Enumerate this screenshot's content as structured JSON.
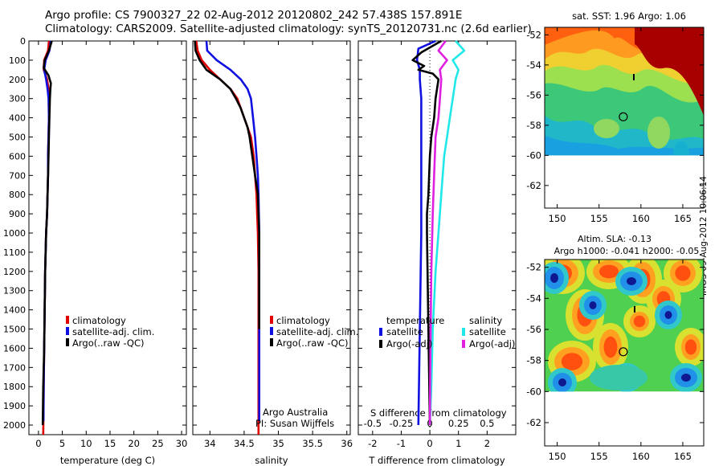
{
  "header": {
    "title_line1": "Argo profile: CS 7900327_22 02-Aug-2012 20120802_242 57.438S 157.891E",
    "title_line2": "Climatology: CARS2009. Satellite-adjusted climatology: synTS_20120731.nc (2.6d earlier)"
  },
  "footer": {
    "side_label": "IMOS 09-Aug-2012 10:06:14"
  },
  "colors": {
    "red": "#e00000",
    "blue": "#1010e0",
    "black": "#000000",
    "cyan": "#20e8e8",
    "magenta": "#e020e0"
  },
  "chart_data": [
    {
      "id": "temperature",
      "type": "line",
      "xlabel": "temperature (deg C)",
      "ylabel": "",
      "xlim": [
        -2,
        31
      ],
      "ylim": [
        2050,
        0
      ],
      "xticks": [
        "0",
        "5",
        "10",
        "15",
        "20",
        "25",
        "30"
      ],
      "xtick_values": [
        0,
        5,
        10,
        15,
        20,
        25,
        30
      ],
      "yticks": [
        "0",
        "100",
        "200",
        "300",
        "400",
        "500",
        "600",
        "700",
        "800",
        "900",
        "1000",
        "1100",
        "1200",
        "1300",
        "1400",
        "1500",
        "1600",
        "1700",
        "1800",
        "1900",
        "2000"
      ],
      "ytick_values": [
        0,
        100,
        200,
        300,
        400,
        500,
        600,
        700,
        800,
        900,
        1000,
        1100,
        1200,
        1300,
        1400,
        1500,
        1600,
        1700,
        1800,
        1900,
        2000
      ],
      "legend": [
        "climatology",
        "satellite-adj. clim.",
        "Argo(..raw -QC)"
      ],
      "legend_colors": [
        "#e00000",
        "#1010e0",
        "#000000"
      ],
      "series": [
        {
          "name": "climatology",
          "color": "#e00000",
          "x": [
            2.2,
            2.0,
            1.2,
            1.1,
            1.8,
            2.1,
            2.2,
            2.2,
            2.1,
            2.0,
            2.0,
            1.9,
            1.8,
            1.6,
            1.4,
            1.3,
            1.2,
            1.1,
            1.05,
            1.0
          ],
          "y": [
            0,
            50,
            100,
            150,
            200,
            250,
            300,
            400,
            500,
            600,
            700,
            800,
            900,
            1000,
            1200,
            1400,
            1600,
            1800,
            1950,
            2050
          ]
        },
        {
          "name": "satellite-adj. clim.",
          "color": "#1010e0",
          "x": [
            2.6,
            2.3,
            1.5,
            1.2,
            1.6,
            1.9,
            2.1,
            2.2,
            2.1,
            2.0,
            2.0,
            1.9,
            1.8,
            1.6,
            1.4,
            1.3,
            1.2,
            1.1,
            1.05
          ],
          "y": [
            0,
            50,
            100,
            150,
            200,
            250,
            300,
            400,
            500,
            600,
            700,
            800,
            900,
            1000,
            1200,
            1400,
            1600,
            1800,
            1980
          ]
        },
        {
          "name": "Argo(..raw -QC)",
          "color": "#000000",
          "x": [
            2.8,
            2.2,
            1.3,
            1.1,
            2.1,
            2.6,
            2.5,
            2.4,
            2.3,
            2.2,
            2.1,
            2.0,
            1.9,
            1.8,
            1.6,
            1.4,
            1.3,
            1.2,
            1.0,
            0.9
          ],
          "y": [
            0,
            50,
            100,
            140,
            180,
            220,
            250,
            300,
            400,
            500,
            600,
            700,
            800,
            900,
            1000,
            1200,
            1400,
            1600,
            1800,
            2000
          ]
        }
      ]
    },
    {
      "id": "salinity",
      "type": "line",
      "xlabel": "salinity",
      "xlim": [
        33.75,
        36.05
      ],
      "ylim": [
        2050,
        0
      ],
      "xticks": [
        "34",
        "34.5",
        "35",
        "35.5",
        "36"
      ],
      "xtick_values": [
        34,
        34.5,
        35,
        35.5,
        36
      ],
      "legend": [
        "climatology",
        "satellite-adj. clim.",
        "Argo(..raw -QC)"
      ],
      "legend_colors": [
        "#e00000",
        "#1010e0",
        "#000000"
      ],
      "annotation_line1": "Argo Australia",
      "annotation_line2": "PI: Susan Wijffels",
      "series": [
        {
          "name": "climatology",
          "color": "#e00000",
          "x": [
            33.8,
            33.82,
            33.88,
            34.0,
            34.15,
            34.3,
            34.4,
            34.45,
            34.5,
            34.55,
            34.6,
            34.64,
            34.66,
            34.68,
            34.69,
            34.7,
            34.71,
            34.71,
            34.71
          ],
          "y": [
            0,
            50,
            100,
            150,
            200,
            250,
            300,
            350,
            400,
            450,
            500,
            600,
            700,
            800,
            900,
            1000,
            1200,
            1500,
            2050
          ]
        },
        {
          "name": "satellite-adj. clim.",
          "color": "#1010e0",
          "x": [
            33.95,
            33.96,
            34.1,
            34.3,
            34.45,
            34.55,
            34.6,
            34.63,
            34.66,
            34.68,
            34.7,
            34.71,
            34.72,
            34.72,
            34.72,
            34.72
          ],
          "y": [
            0,
            50,
            100,
            150,
            200,
            250,
            300,
            400,
            500,
            600,
            700,
            800,
            1000,
            1200,
            1500,
            1980
          ]
        },
        {
          "name": "Argo(..raw -QC)",
          "color": "#000000",
          "x": [
            33.78,
            33.79,
            33.85,
            33.95,
            34.15,
            34.3,
            34.38,
            34.45,
            34.5,
            34.55,
            34.58,
            34.62,
            34.66,
            34.7,
            34.71,
            34.72,
            34.72,
            34.72
          ],
          "y": [
            0,
            50,
            100,
            150,
            200,
            250,
            300,
            350,
            400,
            450,
            500,
            600,
            700,
            800,
            900,
            1000,
            1200,
            1500
          ]
        }
      ]
    },
    {
      "id": "differences",
      "type": "line",
      "xlabel": "T difference from climatology",
      "top_label": "S difference from climatology",
      "xlim": [
        -2.5,
        3.0
      ],
      "ylim": [
        2050,
        0
      ],
      "xticks": [
        "-2",
        "-1",
        "0",
        "1",
        "2"
      ],
      "xtick_values": [
        -2,
        -1,
        0,
        1,
        2
      ],
      "top_ticks": [
        "-0.5",
        "-0.25",
        "0",
        "0.25",
        "0.5"
      ],
      "top_tick_values": [
        -0.5,
        -0.25,
        0,
        0.25,
        0.5
      ],
      "legend_title_left": "temperature",
      "legend_title_right": "salinity",
      "legend": [
        "satellite",
        "Argo(-adj)",
        "satellite",
        "Argo(-adj)"
      ],
      "legend_colors": [
        "#1010e0",
        "#000000",
        "#20e8e8",
        "#e020e0"
      ],
      "series": [
        {
          "name": "satellite",
          "color": "#1010e0",
          "x": [
            0.2,
            -0.4,
            -0.45,
            -0.35,
            -0.35,
            -0.3,
            -0.3,
            -0.3,
            -0.35,
            -0.4
          ],
          "y": [
            0,
            40,
            100,
            150,
            200,
            300,
            500,
            1000,
            1500,
            2000
          ]
        },
        {
          "name": "Argo(-adj)",
          "color": "#000000",
          "x": [
            0.4,
            -0.3,
            -0.6,
            -0.2,
            -0.4,
            0.1,
            0.3,
            0.25,
            0.2,
            0.15,
            0.05,
            0.0,
            -0.05,
            -0.1,
            -0.1,
            -0.05,
            0.0
          ],
          "y": [
            0,
            60,
            100,
            130,
            150,
            170,
            200,
            250,
            300,
            400,
            500,
            600,
            800,
            900,
            1000,
            1500,
            2000
          ]
        },
        {
          "name": "satellite",
          "color": "#20e8e8",
          "x": [
            0.9,
            1.2,
            0.8,
            1.0,
            0.9,
            0.8,
            0.7,
            0.6,
            0.5,
            0.4,
            0.3,
            0.2,
            0.1,
            0.05,
            0.0
          ],
          "y": [
            0,
            50,
            100,
            150,
            200,
            300,
            400,
            500,
            600,
            800,
            1000,
            1200,
            1500,
            1800,
            2000
          ]
        },
        {
          "name": "Argo(-adj)",
          "color": "#e020e0",
          "x": [
            0.55,
            0.3,
            0.6,
            0.35,
            0.4,
            0.35,
            0.3,
            0.2,
            0.15,
            0.1,
            0.05,
            0.02,
            0.0
          ],
          "y": [
            0,
            50,
            100,
            150,
            200,
            300,
            400,
            500,
            700,
            900,
            1200,
            1600,
            2000
          ]
        }
      ]
    },
    {
      "id": "sst-map",
      "type": "heatmap",
      "title": "sat. SST: 1.96 Argo: 1.06",
      "xlim": [
        148.5,
        167.5
      ],
      "ylim": [
        -63.5,
        -51.5
      ],
      "xticks": [
        "150",
        "155",
        "160",
        "165"
      ],
      "xtick_values": [
        150,
        155,
        160,
        165
      ],
      "yticks": [
        "-52",
        "-54",
        "-56",
        "-58",
        "-60",
        "-62"
      ],
      "ytick_values": [
        -52,
        -54,
        -56,
        -58,
        -60,
        -62
      ],
      "data_extent_lat": [
        -60,
        -51.5
      ],
      "float_position": [
        157.891,
        -57.438
      ]
    },
    {
      "id": "sla-map",
      "type": "heatmap",
      "title_line1": "Altim. SLA: -0.13",
      "title_line2": "Argo h1000: -0.041 h2000: -0.05",
      "xlim": [
        148.5,
        167.5
      ],
      "ylim": [
        -63.5,
        -51.5
      ],
      "xticks": [
        "150",
        "155",
        "160",
        "165"
      ],
      "xtick_values": [
        150,
        155,
        160,
        165
      ],
      "yticks": [
        "-52",
        "-54",
        "-56",
        "-58",
        "-60",
        "-62"
      ],
      "ytick_values": [
        -52,
        -54,
        -56,
        -58,
        -60,
        -62
      ],
      "data_extent_lat": [
        -60,
        -51.5
      ],
      "float_position": [
        157.891,
        -57.438
      ]
    }
  ]
}
